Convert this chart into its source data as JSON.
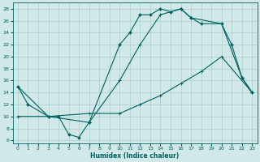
{
  "xlabel": "Humidex (Indice chaleur)",
  "xlim": [
    -0.5,
    23.5
  ],
  "ylim": [
    5.5,
    29
  ],
  "yticks": [
    6,
    8,
    10,
    12,
    14,
    16,
    18,
    20,
    22,
    24,
    26,
    28
  ],
  "xticks": [
    0,
    1,
    2,
    3,
    4,
    5,
    6,
    7,
    8,
    9,
    10,
    11,
    12,
    13,
    14,
    15,
    16,
    17,
    18,
    19,
    20,
    21,
    22,
    23
  ],
  "bg_color": "#d0e8e8",
  "line_color": "#006060",
  "curve1_x": [
    0,
    1,
    3,
    4,
    5,
    6,
    7,
    10,
    11,
    12,
    13,
    14,
    15,
    16,
    17,
    18,
    20,
    21,
    22,
    23
  ],
  "curve1_y": [
    15,
    12,
    10,
    10,
    7,
    6.5,
    9,
    22,
    24,
    27,
    27,
    28,
    27.5,
    28,
    26.5,
    25.5,
    25.5,
    22,
    16.5,
    14
  ],
  "curve2_x": [
    0,
    3,
    7,
    10,
    12,
    14,
    16,
    18,
    20,
    23
  ],
  "curve2_y": [
    10,
    10,
    10.5,
    10.5,
    12,
    13.5,
    15.5,
    17.5,
    20,
    14
  ],
  "curve3_x": [
    0,
    3,
    7,
    10,
    12,
    14,
    16,
    17,
    20,
    22,
    23
  ],
  "curve3_y": [
    15,
    10,
    9,
    16,
    22,
    27,
    28,
    26.5,
    25.5,
    16.5,
    14
  ]
}
